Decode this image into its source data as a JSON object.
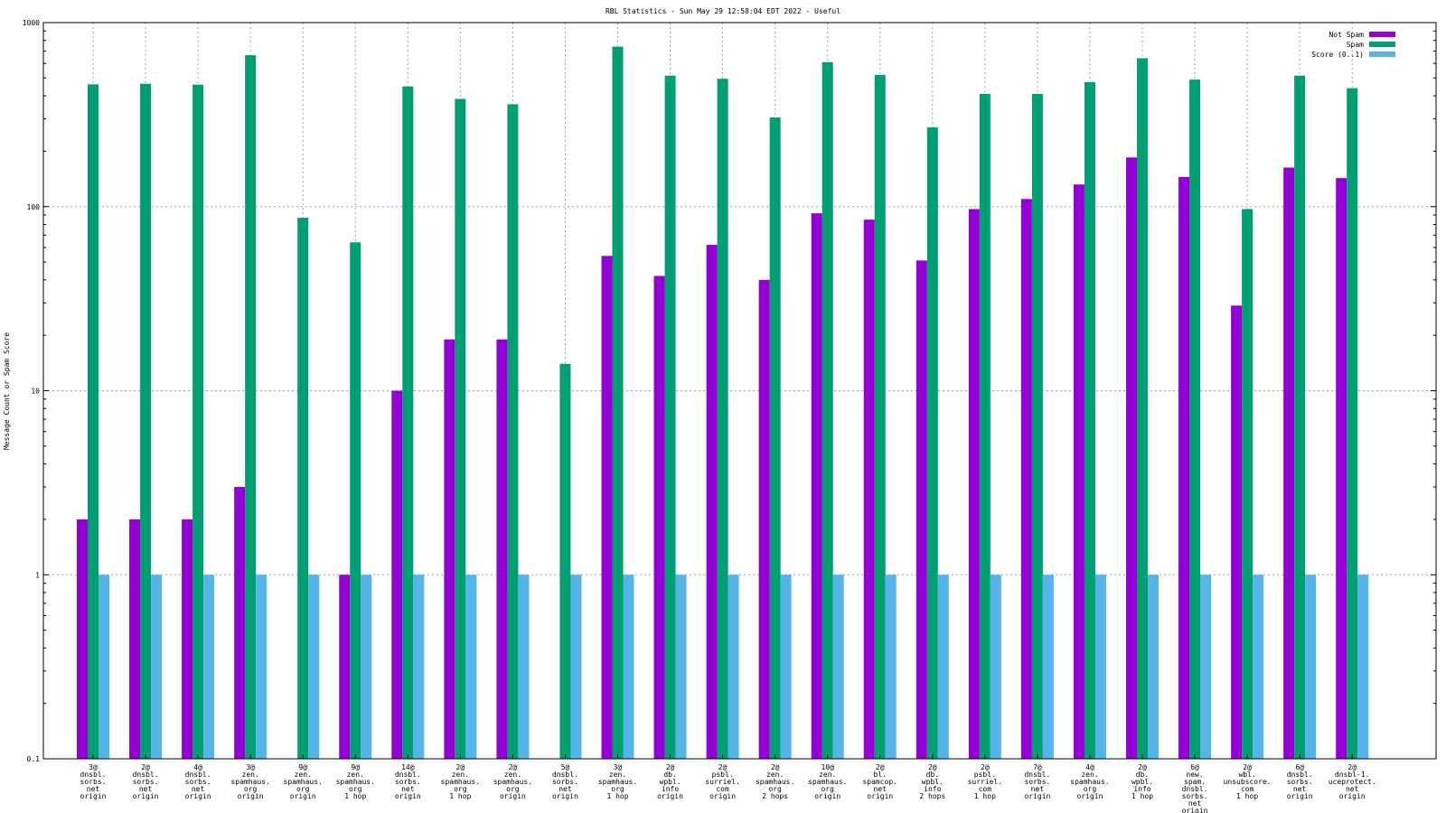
{
  "chart_data": {
    "type": "bar",
    "title": "RBL Statistics - Sun May 29 12:58:04 EDT 2022 - Useful",
    "ylabel": "Message Count or Spam Score",
    "xlabel": "",
    "yscale": "log",
    "ylim": [
      0.1,
      1000
    ],
    "yticks": [
      "0.1",
      "1",
      "10",
      "100",
      "1000"
    ],
    "grid": true,
    "legend_position": "top-right",
    "categories": [
      [
        "3@",
        "dnsbl.",
        "sorbs.",
        "net",
        "origin"
      ],
      [
        "2@",
        "dnsbl.",
        "sorbs.",
        "net",
        "origin"
      ],
      [
        "4@",
        "dnsbl.",
        "sorbs.",
        "net",
        "origin"
      ],
      [
        "3@",
        "zen.",
        "spamhaus.",
        "org",
        "origin"
      ],
      [
        "9@",
        "zen.",
        "spamhaus.",
        "org",
        "origin"
      ],
      [
        "9@",
        "zen.",
        "spamhaus.",
        "org",
        "1 hop"
      ],
      [
        "14@",
        "dnsbl.",
        "sorbs.",
        "net",
        "origin"
      ],
      [
        "2@",
        "zen.",
        "spamhaus.",
        "org",
        "1 hop"
      ],
      [
        "2@",
        "zen.",
        "spamhaus.",
        "org",
        "origin"
      ],
      [
        "5@",
        "dnsbl.",
        "sorbs.",
        "net",
        "origin"
      ],
      [
        "3@",
        "zen.",
        "spamhaus.",
        "org",
        "1 hop"
      ],
      [
        "2@",
        "db.",
        "wpbl.",
        "info",
        "origin"
      ],
      [
        "2@",
        "psbl.",
        "surriel.",
        "com",
        "origin"
      ],
      [
        "2@",
        "zen.",
        "spamhaus.",
        "org",
        "2 hops"
      ],
      [
        "10@",
        "zen.",
        "spamhaus.",
        "org",
        "origin"
      ],
      [
        "2@",
        "bl.",
        "spamcop.",
        "net",
        "origin"
      ],
      [
        "2@",
        "db.",
        "wpbl.",
        "info",
        "2 hops"
      ],
      [
        "2@",
        "psbl.",
        "surriel.",
        "com",
        "1 hop"
      ],
      [
        "7@",
        "dnsbl.",
        "sorbs.",
        "net",
        "origin"
      ],
      [
        "4@",
        "zen.",
        "spamhaus.",
        "org",
        "origin"
      ],
      [
        "2@",
        "db.",
        "wpbl.",
        "info",
        "1 hop"
      ],
      [
        "6@",
        "new.",
        "spam.",
        "dnsbl.",
        "sorbs.",
        "net",
        "origin"
      ],
      [
        "2@",
        "wbl.",
        "unsubscore.",
        "com",
        "1 hop"
      ],
      [
        "6@",
        "dnsbl.",
        "sorbs.",
        "net",
        "origin"
      ],
      [
        "2@",
        "dnsbl-1.",
        "uceprotect.",
        "net",
        "origin"
      ]
    ],
    "series": [
      {
        "name": "Not Spam",
        "color": "#9400d3",
        "values": [
          2,
          2,
          2,
          3,
          null,
          1,
          10,
          19,
          19,
          null,
          54,
          42,
          62,
          40,
          92,
          85,
          51,
          97,
          110,
          132,
          185,
          145,
          29,
          163,
          143
        ]
      },
      {
        "name": "Spam",
        "color": "#009e73",
        "values": [
          462,
          465,
          460,
          665,
          87,
          64,
          450,
          385,
          360,
          14,
          740,
          515,
          495,
          305,
          610,
          520,
          270,
          410,
          410,
          475,
          640,
          490,
          97,
          515,
          440
        ]
      },
      {
        "name": "Score (0..1)",
        "color": "#56b4e9",
        "values": [
          1,
          1,
          1,
          1,
          1,
          1,
          1,
          1,
          1,
          1,
          1,
          1,
          1,
          1,
          1,
          1,
          1,
          1,
          1,
          1,
          1,
          1,
          1,
          1,
          1
        ]
      }
    ]
  }
}
